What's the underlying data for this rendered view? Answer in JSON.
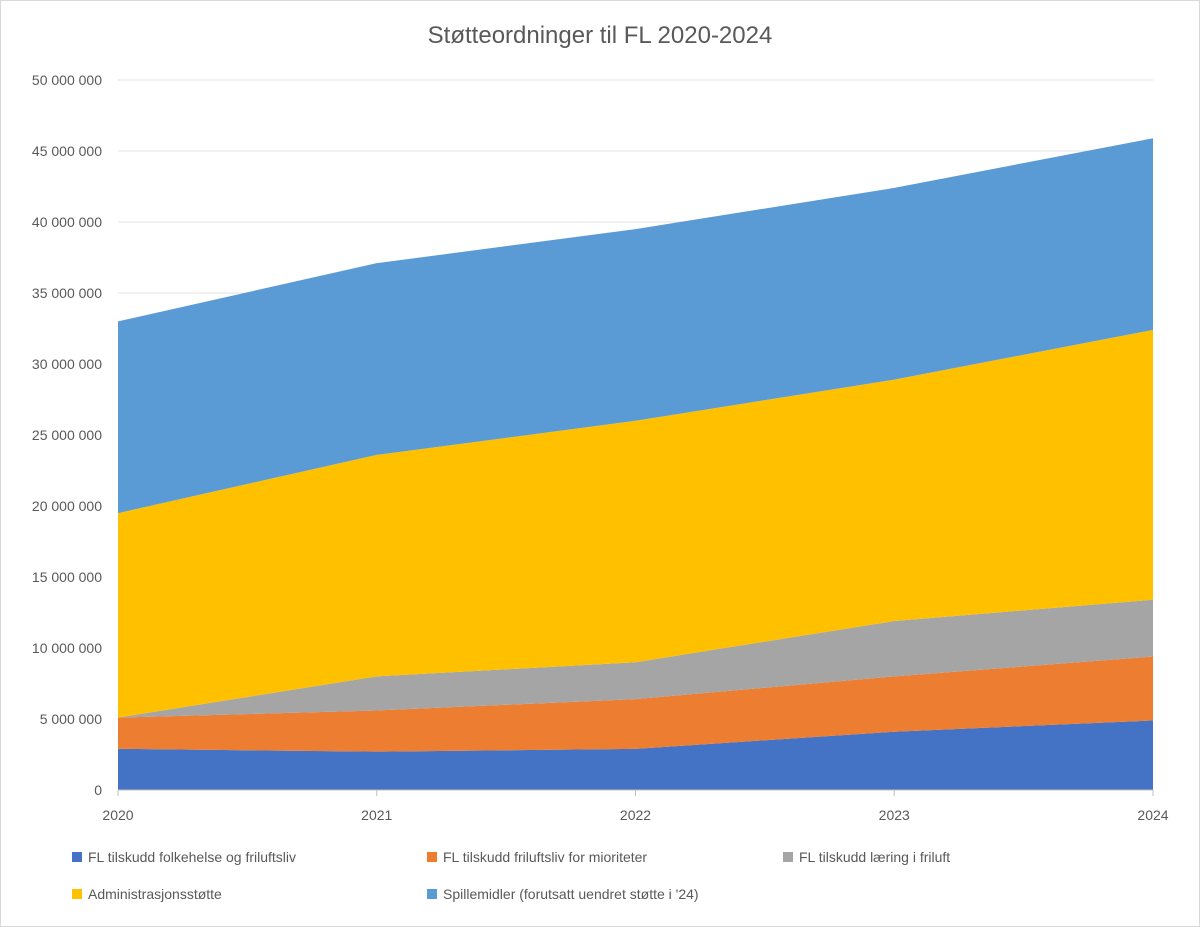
{
  "chart_data": {
    "type": "area",
    "stacked": true,
    "title": "Støtteordninger til FL 2020-2024",
    "xlabel": "",
    "ylabel": "",
    "x": [
      "2020",
      "2021",
      "2022",
      "2023",
      "2024"
    ],
    "ylim": [
      0,
      50000000
    ],
    "yticks": [
      0,
      5000000,
      10000000,
      15000000,
      20000000,
      25000000,
      30000000,
      35000000,
      40000000,
      45000000,
      50000000
    ],
    "ytick_labels": [
      "0",
      "5 000 000",
      "10 000 000",
      "15 000 000",
      "20 000 000",
      "25 000 000",
      "30 000 000",
      "35 000 000",
      "40 000 000",
      "45 000 000",
      "50 000 000"
    ],
    "grid": true,
    "legend_position": "bottom",
    "series": [
      {
        "name": "FL tilskudd folkehelse og friluftsliv",
        "color": "#4472c4",
        "values": [
          2900000,
          2700000,
          2900000,
          4100000,
          4900000
        ]
      },
      {
        "name": "FL tilskudd friluftsliv for mioriteter",
        "color": "#ed7d31",
        "values": [
          2200000,
          2900000,
          3500000,
          3900000,
          4500000
        ]
      },
      {
        "name": "FL tilskudd læring i friluft",
        "color": "#a5a5a5",
        "values": [
          0,
          2400000,
          2600000,
          3900000,
          4000000
        ]
      },
      {
        "name": "Administrasjonsstøtte",
        "color": "#ffc000",
        "values": [
          14400000,
          15600000,
          17000000,
          17000000,
          19000000
        ]
      },
      {
        "name": "Spillemidler (forutsatt uendret støtte i '24)",
        "color": "#5b9bd5",
        "values": [
          13500000,
          13500000,
          13500000,
          13500000,
          13500000
        ]
      }
    ]
  }
}
